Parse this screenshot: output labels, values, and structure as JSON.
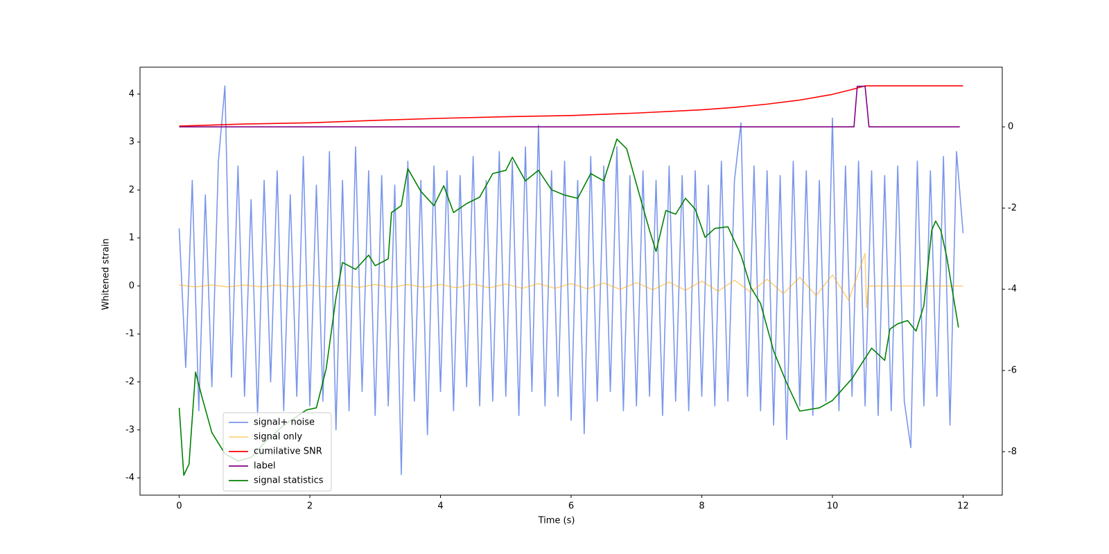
{
  "chart_data": {
    "type": "line",
    "xlabel": "Time (s)",
    "ylabel": "Whitened strain",
    "xlim": [
      -0.6,
      12.6
    ],
    "xticks": [
      0,
      2,
      4,
      6,
      8,
      10,
      12
    ],
    "ylim": [
      -4.36,
      4.56
    ],
    "yticks": [
      -4,
      -3,
      -2,
      -1,
      0,
      1,
      2,
      3,
      4
    ],
    "y2lim": [
      -9.07,
      1.47
    ],
    "y2ticks": [
      -8,
      -6,
      -4,
      -2,
      0
    ],
    "legend": "lower left",
    "series": [
      {
        "name": "signal+ noise",
        "color": "#4169e1",
        "opacity": 0.7,
        "x": [
          0,
          0.1,
          0.2,
          0.3,
          0.4,
          0.5,
          0.6,
          0.7,
          0.8,
          0.9,
          1,
          1.1,
          1.2,
          1.3,
          1.4,
          1.5,
          1.6,
          1.7,
          1.8,
          1.9,
          2,
          2.1,
          2.2,
          2.3,
          2.4,
          2.5,
          2.6,
          2.7,
          2.8,
          2.9,
          3,
          3.1,
          3.2,
          3.3,
          3.4,
          3.5,
          3.6,
          3.7,
          3.8,
          3.9,
          4,
          4.1,
          4.2,
          4.3,
          4.4,
          4.5,
          4.6,
          4.7,
          4.8,
          4.9,
          5,
          5.1,
          5.2,
          5.3,
          5.4,
          5.5,
          5.6,
          5.7,
          5.8,
          5.9,
          6,
          6.1,
          6.2,
          6.3,
          6.4,
          6.5,
          6.6,
          6.7,
          6.8,
          6.9,
          7,
          7.1,
          7.2,
          7.3,
          7.4,
          7.5,
          7.6,
          7.7,
          7.8,
          7.9,
          8,
          8.1,
          8.2,
          8.3,
          8.4,
          8.5,
          8.6,
          8.7,
          8.8,
          8.9,
          9,
          9.1,
          9.2,
          9.3,
          9.4,
          9.5,
          9.6,
          9.7,
          9.8,
          9.9,
          10,
          10.1,
          10.2,
          10.3,
          10.4,
          10.5,
          10.6,
          10.7,
          10.8,
          10.9,
          11,
          11.1,
          11.2,
          11.3,
          11.4,
          11.5,
          11.6,
          11.7,
          11.8,
          11.9,
          12
        ],
        "values": [
          1.2,
          -1.7,
          2.2,
          -2.6,
          1.9,
          -2.1,
          2.6,
          4.17,
          -1.9,
          2.5,
          -2.3,
          1.8,
          -2.7,
          2.2,
          -2.0,
          2.4,
          -2.6,
          1.9,
          -2.3,
          2.7,
          -2.5,
          2.1,
          -2.4,
          2.8,
          -3.0,
          2.2,
          -2.6,
          2.9,
          -2.2,
          2.4,
          -2.7,
          2.3,
          -2.5,
          2.1,
          -3.93,
          2.6,
          -2.4,
          2.2,
          -3.1,
          2.5,
          -2.2,
          2.4,
          -2.6,
          2.3,
          -2.1,
          2.7,
          -2.5,
          2.2,
          -2.4,
          2.8,
          -2.3,
          2.6,
          -2.7,
          2.9,
          -2.2,
          3.35,
          -2.5,
          2.4,
          -2.3,
          2.6,
          -2.8,
          2.2,
          -3.08,
          2.7,
          -2.4,
          2.5,
          -2.2,
          2.9,
          -2.6,
          2.3,
          -2.5,
          2.4,
          -2.3,
          2.2,
          -2.7,
          2.5,
          -2.4,
          2.3,
          -2.6,
          2.4,
          -2.3,
          2.1,
          -2.5,
          2.6,
          -2.4,
          2.2,
          3.4,
          -2.3,
          2.5,
          -2.6,
          2.4,
          -2.9,
          2.3,
          -3.2,
          2.6,
          -2.5,
          2.4,
          -2.7,
          2.2,
          -2.4,
          3.5,
          -2.6,
          2.5,
          -2.3,
          2.6,
          -2.5,
          2.4,
          -2.7,
          2.3,
          -2.6,
          2.5,
          -2.4,
          -3.37,
          2.6,
          -2.5,
          2.4,
          -2.3,
          2.7,
          -2.9,
          2.8,
          1.1
        ]
      },
      {
        "name": "signal only",
        "color": "#ffa500",
        "opacity": 0.5,
        "x": [
          0,
          0.25,
          0.5,
          0.75,
          1,
          1.25,
          1.5,
          1.75,
          2,
          2.25,
          2.5,
          2.75,
          3,
          3.25,
          3.5,
          3.75,
          4,
          4.25,
          4.5,
          4.75,
          5,
          5.25,
          5.5,
          5.75,
          6,
          6.25,
          6.5,
          6.75,
          7,
          7.25,
          7.5,
          7.75,
          8,
          8.25,
          8.5,
          8.75,
          9,
          9.25,
          9.5,
          9.75,
          10,
          10.25,
          10.5,
          10.52,
          10.55,
          12
        ],
        "values": [
          0.02,
          -0.02,
          0.02,
          -0.02,
          0.02,
          -0.02,
          0.02,
          -0.02,
          0.02,
          -0.02,
          0.02,
          -0.03,
          0.03,
          -0.03,
          0.03,
          -0.03,
          0.03,
          -0.04,
          0.04,
          -0.04,
          0.04,
          -0.05,
          0.05,
          -0.05,
          0.05,
          -0.06,
          0.06,
          -0.07,
          0.07,
          -0.08,
          0.08,
          -0.09,
          0.1,
          -0.11,
          0.12,
          -0.13,
          0.14,
          -0.16,
          0.18,
          -0.2,
          0.23,
          -0.3,
          0.68,
          -0.45,
          0,
          0
        ]
      },
      {
        "name": "cumilative SNR",
        "color": "red",
        "axis": "y2",
        "x": [
          0,
          1,
          2,
          3,
          4,
          5,
          6,
          7,
          8,
          8.5,
          9,
          9.5,
          10,
          10.3,
          10.5,
          12
        ],
        "values": [
          0.02,
          0.07,
          0.1,
          0.16,
          0.21,
          0.25,
          0.28,
          0.34,
          0.42,
          0.48,
          0.56,
          0.66,
          0.8,
          0.92,
          1.01,
          1.01
        ]
      },
      {
        "name": "label",
        "color": "purple",
        "axis": "y2",
        "x": [
          0,
          10.33,
          10.38,
          10.5,
          10.56,
          11.95
        ],
        "values": [
          0,
          0,
          1,
          1,
          0,
          0
        ]
      },
      {
        "name": "signal statistics",
        "color": "green",
        "axis": "y2",
        "x": [
          0,
          0.07,
          0.15,
          0.25,
          0.35,
          0.5,
          0.7,
          0.9,
          1.1,
          1.3,
          1.6,
          1.95,
          2.1,
          2.25,
          2.4,
          2.5,
          2.7,
          2.9,
          3.0,
          3.2,
          3.25,
          3.4,
          3.5,
          3.7,
          3.9,
          4.05,
          4.2,
          4.4,
          4.6,
          4.8,
          5.0,
          5.1,
          5.3,
          5.5,
          5.7,
          5.9,
          6.1,
          6.3,
          6.5,
          6.7,
          6.85,
          7.0,
          7.2,
          7.3,
          7.45,
          7.6,
          7.75,
          7.9,
          8.05,
          8.2,
          8.4,
          8.6,
          8.75,
          8.9,
          9.1,
          9.3,
          9.5,
          9.8,
          10.0,
          10.3,
          10.6,
          10.8,
          10.88,
          11.0,
          11.15,
          11.28,
          11.4,
          11.52,
          11.58,
          11.66,
          11.75,
          11.93
        ],
        "values": [
          -6.92,
          -8.58,
          -8.31,
          -6.04,
          -6.66,
          -7.53,
          -8.05,
          -8.23,
          -8.14,
          -7.79,
          -7.35,
          -6.97,
          -6.92,
          -5.96,
          -4.21,
          -3.34,
          -3.51,
          -3.16,
          -3.42,
          -3.25,
          -2.11,
          -1.94,
          -1.03,
          -1.59,
          -1.94,
          -1.45,
          -2.11,
          -1.89,
          -1.73,
          -1.15,
          -1.07,
          -0.75,
          -1.33,
          -1.07,
          -1.55,
          -1.68,
          -1.76,
          -1.15,
          -1.33,
          -0.3,
          -0.54,
          -1.41,
          -2.55,
          -3.07,
          -2.06,
          -2.15,
          -1.76,
          -2.03,
          -2.72,
          -2.5,
          -2.46,
          -3.16,
          -3.95,
          -4.35,
          -5.52,
          -6.31,
          -7.0,
          -6.92,
          -6.74,
          -6.2,
          -5.45,
          -5.75,
          -4.98,
          -4.85,
          -4.77,
          -5.03,
          -4.4,
          -2.55,
          -2.32,
          -2.55,
          -3.2,
          -4.94
        ]
      }
    ]
  }
}
